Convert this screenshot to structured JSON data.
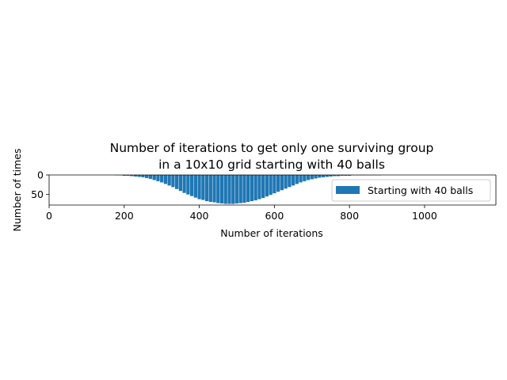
{
  "chart_data": {
    "type": "bar",
    "title_line1": "Number of iterations to get only one surviving group",
    "title_line2": "in a 10x10 grid starting with 40 balls",
    "xlabel": "Number of iterations",
    "ylabel": "Number of times",
    "xlim": [
      0,
      1190
    ],
    "ylim": [
      0,
      77
    ],
    "y_inverted": true,
    "xticks": [
      "0",
      "200",
      "400",
      "600",
      "800",
      "1000"
    ],
    "xtick_values": [
      0,
      200,
      400,
      600,
      800,
      1000
    ],
    "yticks": [
      "0",
      "50"
    ],
    "ytick_values": [
      0,
      50
    ],
    "legend_position": "right",
    "series": [
      {
        "name": "Starting with 40 balls",
        "color": "#1f77b4",
        "x": [
          180,
          190,
          200,
          210,
          220,
          230,
          240,
          250,
          260,
          270,
          280,
          290,
          300,
          310,
          320,
          330,
          340,
          350,
          360,
          370,
          380,
          390,
          400,
          410,
          420,
          430,
          440,
          450,
          460,
          470,
          480,
          490,
          500,
          510,
          520,
          530,
          540,
          550,
          560,
          570,
          580,
          590,
          600,
          610,
          620,
          630,
          640,
          650,
          660,
          670,
          680,
          690,
          700,
          710,
          720,
          730,
          740,
          750,
          760,
          770,
          780,
          790,
          800,
          810,
          820,
          830,
          840,
          850,
          860,
          870,
          880
        ],
        "values": [
          1,
          1,
          2,
          2,
          3,
          4,
          5,
          6,
          8,
          10,
          13,
          16,
          19,
          23,
          27,
          31,
          36,
          41,
          46,
          50,
          54,
          58,
          62,
          64,
          67,
          69,
          70,
          72,
          73,
          74,
          74,
          74,
          73,
          72,
          71,
          69,
          67,
          65,
          62,
          59,
          55,
          51,
          47,
          43,
          39,
          35,
          31,
          27,
          23,
          19,
          16,
          13,
          11,
          9,
          7,
          6,
          5,
          4,
          3,
          3,
          2,
          2,
          2,
          1,
          1,
          1,
          1,
          1,
          1,
          1,
          1
        ]
      }
    ]
  }
}
